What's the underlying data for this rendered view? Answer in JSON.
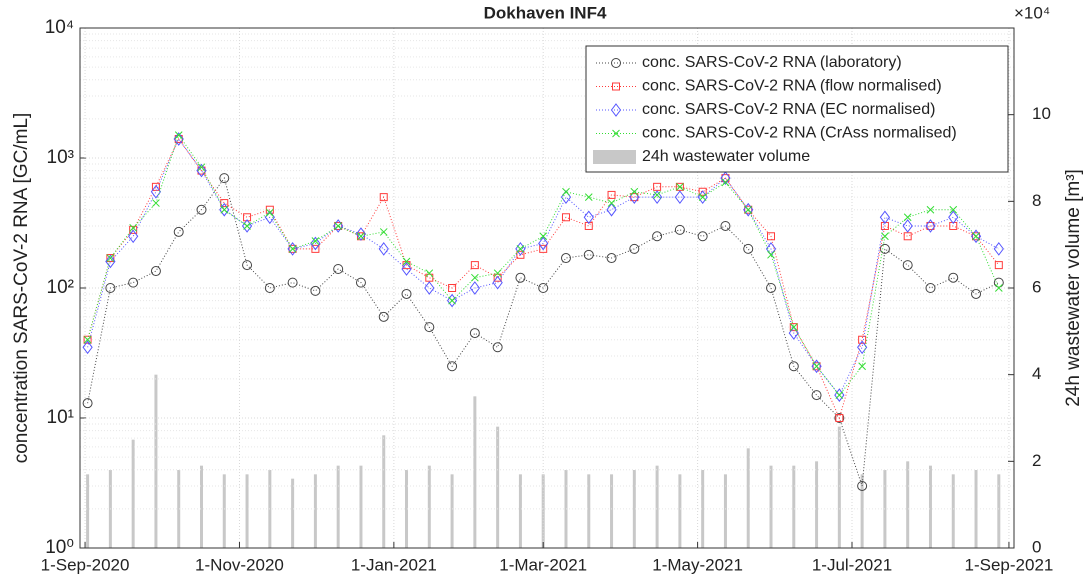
{
  "chart_data": {
    "type": "line",
    "title": "Dokhaven INF4",
    "ylabel": "concentration SARS-CoV-2 RNA [GC/mL]",
    "y2label": "24h wastewater volume [m³]",
    "y2_multiplier": "×10⁴",
    "log_y": true,
    "grid": true,
    "legend": "northeast",
    "xlim": [
      "2020-08-30",
      "2021-09-03"
    ],
    "xticks": [
      {
        "value": "2020-09-01",
        "label": "1-Sep-2020"
      },
      {
        "value": "2020-11-01",
        "label": "1-Nov-2020"
      },
      {
        "value": "2021-01-01",
        "label": "1-Jan-2021"
      },
      {
        "value": "2021-03-01",
        "label": "1-Mar-2021"
      },
      {
        "value": "2021-05-01",
        "label": "1-May-2021"
      },
      {
        "value": "2021-07-01",
        "label": "1-Jul-2021"
      },
      {
        "value": "2021-09-01",
        "label": "1-Sep-2021"
      }
    ],
    "ylim": [
      1,
      10000
    ],
    "yticks": [
      {
        "value": 1,
        "label": "10⁰"
      },
      {
        "value": 10,
        "label": "10¹"
      },
      {
        "value": 100,
        "label": "10²"
      },
      {
        "value": 1000,
        "label": "10³"
      },
      {
        "value": 10000,
        "label": "10⁴"
      }
    ],
    "y2lim": [
      0,
      12
    ],
    "y2ticks": [
      0,
      2,
      4,
      6,
      8,
      10
    ],
    "x": [
      "2020-09-02",
      "2020-09-11",
      "2020-09-20",
      "2020-09-29",
      "2020-10-08",
      "2020-10-17",
      "2020-10-26",
      "2020-11-04",
      "2020-11-13",
      "2020-11-22",
      "2020-12-01",
      "2020-12-10",
      "2020-12-19",
      "2020-12-28",
      "2021-01-06",
      "2021-01-15",
      "2021-01-24",
      "2021-02-02",
      "2021-02-11",
      "2021-02-20",
      "2021-03-01",
      "2021-03-10",
      "2021-03-19",
      "2021-03-28",
      "2021-04-06",
      "2021-04-15",
      "2021-04-24",
      "2021-05-03",
      "2021-05-12",
      "2021-05-21",
      "2021-05-30",
      "2021-06-08",
      "2021-06-17",
      "2021-06-26",
      "2021-07-05",
      "2021-07-14",
      "2021-07-23",
      "2021-08-01",
      "2021-08-10",
      "2021-08-19",
      "2021-08-28"
    ],
    "series": [
      {
        "name": "24h wastewater volume",
        "kind": "bar",
        "axis": "y2",
        "color": "#c8c8c8",
        "values": [
          1.7,
          1.8,
          2.5,
          4,
          1.8,
          1.9,
          1.7,
          1.7,
          1.8,
          1.6,
          1.7,
          1.9,
          1.9,
          2.6,
          1.8,
          1.9,
          1.7,
          3.5,
          2.8,
          1.7,
          1.7,
          1.8,
          1.7,
          1.7,
          1.8,
          1.9,
          1.7,
          1.8,
          1.7,
          2.3,
          1.9,
          1.9,
          2.0,
          2.8,
          1.7,
          1.8,
          2.0,
          1.9,
          1.7,
          1.8,
          1.7
        ]
      },
      {
        "name": "conc. SARS-CoV-2 RNA (laboratory)",
        "marker": "o",
        "color": "#444444",
        "values": [
          13,
          100,
          110,
          135,
          270,
          400,
          700,
          150,
          100,
          110,
          95,
          140,
          110,
          60,
          90,
          50,
          25,
          45,
          35,
          120,
          100,
          170,
          180,
          170,
          200,
          250,
          280,
          250,
          300,
          200,
          100,
          25,
          15,
          10,
          3,
          200,
          150,
          100,
          120,
          90,
          110
        ]
      },
      {
        "name": "conc. SARS-CoV-2 RNA (flow normalised)",
        "marker": "s",
        "color": "#ff3b3b",
        "values": [
          40,
          170,
          280,
          600,
          1400,
          800,
          450,
          350,
          400,
          200,
          200,
          300,
          250,
          500,
          150,
          120,
          100,
          150,
          120,
          180,
          200,
          350,
          300,
          520,
          500,
          600,
          600,
          550,
          700,
          400,
          250,
          50,
          25,
          10,
          40,
          300,
          250,
          300,
          300,
          250,
          150
        ]
      },
      {
        "name": "conc. SARS-CoV-2 RNA (EC normalised)",
        "marker": "d",
        "color": "#5555ff",
        "values": [
          35,
          160,
          250,
          550,
          1400,
          800,
          400,
          300,
          350,
          200,
          220,
          300,
          260,
          200,
          140,
          100,
          80,
          100,
          110,
          200,
          220,
          500,
          350,
          400,
          500,
          500,
          500,
          500,
          700,
          400,
          200,
          45,
          25,
          15,
          35,
          350,
          300,
          300,
          350,
          250,
          200
        ]
      },
      {
        "name": "conc. SARS-CoV-2 RNA (CrAss normalised)",
        "marker": "x",
        "color": "#33dd33",
        "values": [
          40,
          170,
          290,
          450,
          1500,
          850,
          400,
          300,
          380,
          200,
          230,
          300,
          250,
          270,
          160,
          130,
          80,
          120,
          130,
          200,
          250,
          550,
          500,
          450,
          550,
          520,
          600,
          500,
          650,
          400,
          180,
          50,
          25,
          15,
          25,
          250,
          350,
          400,
          400,
          250,
          100
        ]
      }
    ]
  }
}
